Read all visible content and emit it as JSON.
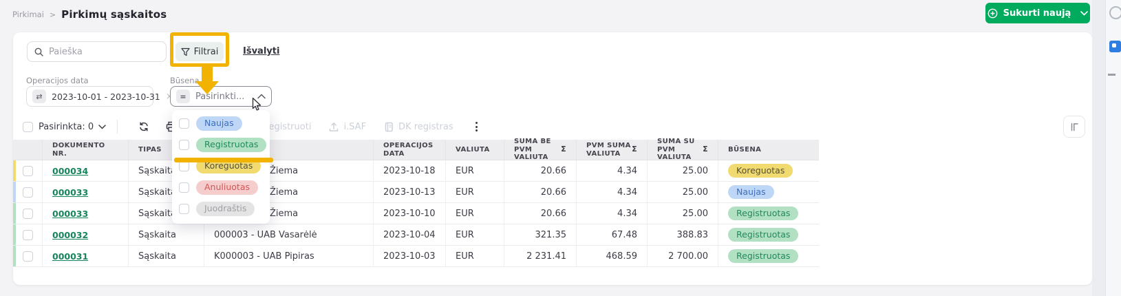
{
  "breadcrumb": {
    "parent": "Pirkimai",
    "separator": ">",
    "current": "Pirkimų sąskaitos"
  },
  "create_button": {
    "label": "Sukurti naują"
  },
  "filters": {
    "search_placeholder": "Paieška",
    "filter_button_label": "Filtrai",
    "clear_link_label": "Išvalyti",
    "operation_date": {
      "label": "Operacijos data",
      "value": "2023-10-01 - 2023-10-31"
    },
    "status": {
      "label": "Būsena",
      "placeholder": "Pasirinkti..."
    }
  },
  "icons": {
    "swap": "⇄",
    "equals": "=",
    "sigma": "Σ",
    "clear": "×"
  },
  "status_dropdown": {
    "options": [
      {
        "label": "Naujas",
        "key": "naujas"
      },
      {
        "label": "Registruotas",
        "key": "registruotas"
      },
      {
        "label": "Koreguotas",
        "key": "koreguotas"
      },
      {
        "label": "Anuliuotas",
        "key": "anuliuotas"
      },
      {
        "label": "Juodraštis",
        "key": "juodrastis"
      }
    ]
  },
  "toolbar": {
    "selected_label": "Pasirinkta: 0",
    "actions": [
      {
        "label": "Registruoti"
      },
      {
        "label": "i.SAF"
      },
      {
        "label": "DK registras"
      }
    ]
  },
  "table": {
    "headers": [
      {
        "label": ""
      },
      {
        "label": "DOKUMENTO NR."
      },
      {
        "label": "TIPAS"
      },
      {
        "label": ""
      },
      {
        "label": "OPERACIJOS\nDATA"
      },
      {
        "label": "VALIUTA"
      },
      {
        "label": "SUMA BE PVM\nVALIUTA",
        "sigma": true
      },
      {
        "label": "PVM SUMA\nVALIUTA",
        "sigma": true
      },
      {
        "label": "SUMA SU PVM\nVALIUTA",
        "sigma": true
      },
      {
        "label": "BŪSENA"
      }
    ],
    "rows": [
      {
        "doc_nr": "000034",
        "type": "Sąskaita",
        "supplier": "Žiema",
        "supplier_indent": 81,
        "op_date": "2023-10-18",
        "currency": "EUR",
        "sum_no_vat": "20.66",
        "vat_sum": "4.34",
        "sum_with_vat": "25.00",
        "status_label": "Koreguotas",
        "status_key": "koreguotas"
      },
      {
        "doc_nr": "000033",
        "type": "Sąskaita",
        "supplier": "Žiema",
        "supplier_indent": 81,
        "op_date": "2023-10-13",
        "currency": "EUR",
        "sum_no_vat": "20.66",
        "vat_sum": "4.34",
        "sum_with_vat": "25.00",
        "status_label": "Naujas",
        "status_key": "naujas"
      },
      {
        "doc_nr": "000033",
        "type": "Sąskaita",
        "supplier": "Žiema",
        "supplier_indent": 81,
        "op_date": "2023-10-10",
        "currency": "EUR",
        "sum_no_vat": "20.66",
        "vat_sum": "4.34",
        "sum_with_vat": "25.00",
        "status_label": "Registruotas",
        "status_key": "registruotas"
      },
      {
        "doc_nr": "000032",
        "type": "Sąskaita",
        "supplier": "000003 - UAB Vasarėlė",
        "supplier_indent": 0,
        "op_date": "2023-10-04",
        "currency": "EUR",
        "sum_no_vat": "321.35",
        "vat_sum": "67.48",
        "sum_with_vat": "388.83",
        "status_label": "Registruotas",
        "status_key": "registruotas"
      },
      {
        "doc_nr": "000031",
        "type": "Sąskaita",
        "supplier": "K000003 - UAB Pipiras",
        "supplier_indent": 0,
        "op_date": "2023-10-03",
        "currency": "EUR",
        "sum_no_vat": "2 231.41",
        "vat_sum": "468.59",
        "sum_with_vat": "2 700.00",
        "status_label": "Registruotas",
        "status_key": "registruotas"
      }
    ]
  },
  "colors": {
    "primary_green": "#00AB5E",
    "link_green": "#17855C",
    "annotation_orange": "#F2B200",
    "statuses": {
      "naujas": {
        "bg": "#BFD7F6",
        "text": "#3E6FBE"
      },
      "registruotas": {
        "bg": "#B2E0C2",
        "text": "#1F8A5E"
      },
      "koreguotas": {
        "bg": "#F1DA70",
        "text": "#55503A"
      },
      "anuliuotas": {
        "bg": "#F6CDCD",
        "text": "#D25555"
      },
      "juodrastis": {
        "bg": "#E4E4E4",
        "text": "#9EA0A6"
      }
    }
  }
}
